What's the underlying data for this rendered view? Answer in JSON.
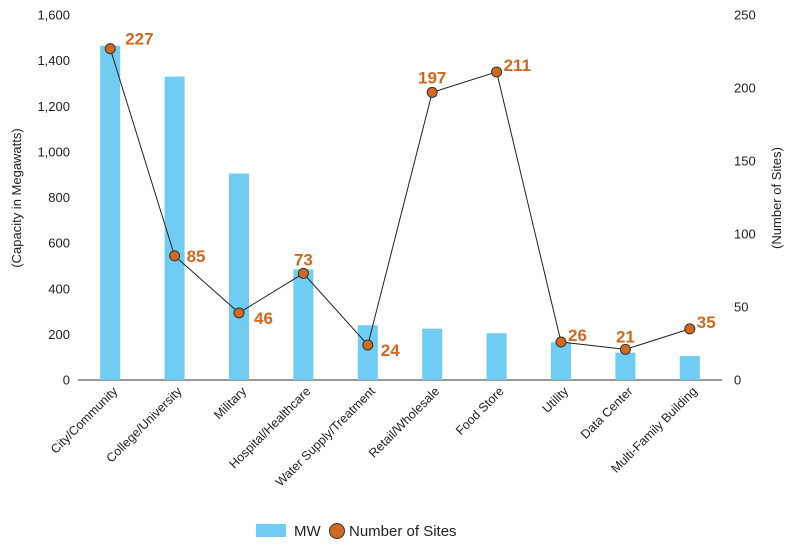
{
  "chart_data": {
    "type": "bar",
    "categories": [
      "City/Community",
      "College/University",
      "Military",
      "Hospital/Healthcare",
      "Water Supply/Treatment",
      "Retail/Wholesale",
      "Food Store",
      "Utility",
      "Data Center",
      "Multi-Family Building"
    ],
    "series": [
      {
        "name": "MW",
        "type": "bar",
        "axis": "left",
        "values": [
          1465,
          1330,
          905,
          485,
          240,
          225,
          205,
          165,
          120,
          105
        ]
      },
      {
        "name": "Number of Sites",
        "type": "line",
        "axis": "right",
        "values": [
          227,
          85,
          46,
          73,
          24,
          197,
          211,
          26,
          21,
          35
        ],
        "data_labels": [
          "227",
          "85",
          "46",
          "73",
          "24",
          "197",
          "211",
          "26",
          "21",
          "35"
        ]
      }
    ],
    "ylabel": "(Capacity in Megawatts)",
    "ylim": [
      0,
      1600
    ],
    "yticks": [
      "0",
      "200",
      "400",
      "600",
      "800",
      "1,000",
      "1,200",
      "1,400",
      "1,600"
    ],
    "y2label": "(Number of Sites)",
    "y2lim": [
      0,
      250
    ],
    "y2ticks": [
      "0",
      "50",
      "100",
      "150",
      "200",
      "250"
    ],
    "grid": false,
    "legend_position": "bottom",
    "colors": {
      "bar": "#6fcdf3",
      "marker": "#d2691e",
      "label": "#d2691e",
      "line": "#222222",
      "axis": "#333333"
    }
  }
}
